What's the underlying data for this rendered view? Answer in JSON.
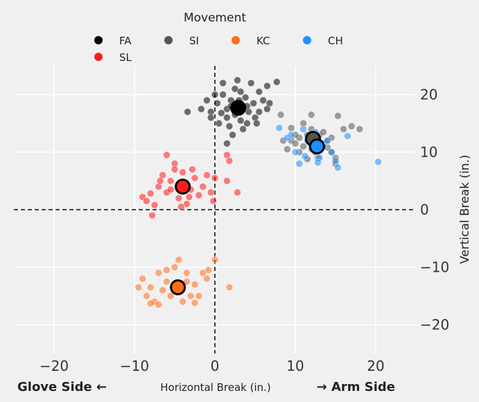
{
  "chart_data": {
    "type": "scatter",
    "title": "",
    "xlabel": "Horizontal Break (in.)",
    "ylabel": "Vertical Break (in.)",
    "x_left_annotation": "Glove Side ←",
    "x_right_annotation": "→ Arm Side",
    "xlim": [
      -25,
      25
    ],
    "ylim": [
      -25,
      25
    ],
    "xticks": [
      -20,
      -10,
      0,
      10,
      20
    ],
    "yticks": [
      -20,
      -10,
      0,
      10,
      20
    ],
    "xtick_labels": [
      "−20",
      "−10",
      "0",
      "10",
      "20"
    ],
    "ytick_labels": [
      "−20",
      "−10",
      "0",
      "10",
      "20"
    ],
    "grid": true,
    "reference_lines": {
      "x": 0,
      "y": 0
    },
    "legend": {
      "title": "Movement",
      "placement": "top-center"
    },
    "series": [
      {
        "name": "FA",
        "color": "#000000",
        "mean": [
          2.9,
          17.7
        ],
        "points": [
          [
            -0.5,
            17
          ],
          [
            0.3,
            18.5
          ],
          [
            1,
            20
          ],
          [
            1.5,
            16
          ],
          [
            2,
            19
          ],
          [
            2.5,
            21
          ],
          [
            3.2,
            15.5
          ],
          [
            3.8,
            19.5
          ],
          [
            4.2,
            17
          ],
          [
            4.8,
            18.5
          ],
          [
            5.5,
            20.5
          ],
          [
            5,
            16
          ],
          [
            6,
            19
          ],
          [
            6.5,
            17.5
          ],
          [
            1,
            22
          ],
          [
            2.8,
            22.5
          ],
          [
            4.5,
            22
          ],
          [
            0.5,
            15
          ],
          [
            1.8,
            14.5
          ],
          [
            3.5,
            14
          ],
          [
            2.2,
            13
          ],
          [
            -1.7,
            17.5
          ],
          [
            -3.4,
            17
          ],
          [
            -1,
            19
          ],
          [
            0,
            20
          ],
          [
            1.5,
            17.5
          ],
          [
            2.5,
            16.5
          ],
          [
            3,
            19
          ],
          [
            4,
            18
          ],
          [
            5.5,
            17
          ],
          [
            6.5,
            21.5
          ],
          [
            7.7,
            22.2
          ],
          [
            1.5,
            11.5
          ],
          [
            -0.5,
            16
          ],
          [
            4,
            15
          ],
          [
            3.2,
            20.5
          ],
          [
            0.8,
            16.8
          ],
          [
            5.2,
            15
          ],
          [
            2,
            18
          ],
          [
            6.8,
            18.5
          ]
        ]
      },
      {
        "name": "SI",
        "color": "#555555",
        "mean": [
          12.2,
          12.3
        ],
        "points": [
          [
            8.5,
            12
          ],
          [
            9,
            10.5
          ],
          [
            9.5,
            12
          ],
          [
            10,
            11.5
          ],
          [
            10.5,
            12.5
          ],
          [
            11,
            11
          ],
          [
            11.5,
            13
          ],
          [
            12,
            14
          ],
          [
            12.5,
            10
          ],
          [
            13,
            13
          ],
          [
            13.5,
            11.5
          ],
          [
            14,
            12
          ],
          [
            14.5,
            10
          ],
          [
            15,
            9
          ],
          [
            11,
            15
          ],
          [
            12,
            16.5
          ],
          [
            13.5,
            13.5
          ],
          [
            15.3,
            16.3
          ],
          [
            16,
            14
          ],
          [
            17,
            14.5
          ],
          [
            18,
            14
          ],
          [
            15,
            8
          ],
          [
            14.5,
            12.5
          ],
          [
            10,
            13
          ],
          [
            12.8,
            9
          ],
          [
            11.5,
            8.8
          ],
          [
            10.5,
            10
          ],
          [
            13,
            11
          ],
          [
            14,
            10.8
          ],
          [
            9.5,
            14.2
          ],
          [
            8.2,
            16.5
          ]
        ]
      },
      {
        "name": "KC",
        "color": "#ff6e1a",
        "mean": [
          -4.6,
          -13.5
        ],
        "points": [
          [
            -9.5,
            -13.5
          ],
          [
            -9,
            -12
          ],
          [
            -8.5,
            -15
          ],
          [
            -8,
            -13.5
          ],
          [
            -7.5,
            -16
          ],
          [
            -7,
            -11
          ],
          [
            -6.5,
            -14
          ],
          [
            -6,
            -12.5
          ],
          [
            -5.5,
            -15
          ],
          [
            -5,
            -10
          ],
          [
            -4.5,
            -13
          ],
          [
            -4,
            -16
          ],
          [
            -3.5,
            -11
          ],
          [
            -3,
            -15
          ],
          [
            -2.5,
            -13
          ],
          [
            -2,
            -15
          ],
          [
            -1.5,
            -11
          ],
          [
            -1,
            -12
          ],
          [
            -0.8,
            -10.5
          ],
          [
            -7,
            -16.5
          ],
          [
            -6,
            -10.5
          ],
          [
            -3.5,
            -12.5
          ],
          [
            -2.5,
            -16.2
          ],
          [
            0,
            -8.7
          ],
          [
            1.8,
            -13.5
          ],
          [
            -4.5,
            -8.7
          ],
          [
            -8,
            -16.3
          ],
          [
            -5,
            -14
          ]
        ]
      },
      {
        "name": "CH",
        "color": "#1e90ff",
        "mean": [
          12.7,
          11.0
        ],
        "points": [
          [
            8,
            14.2
          ],
          [
            9,
            12.5
          ],
          [
            10,
            10
          ],
          [
            10.5,
            8
          ],
          [
            11,
            14
          ],
          [
            11.5,
            12
          ],
          [
            12,
            10.5
          ],
          [
            12.5,
            13.5
          ],
          [
            13,
            9
          ],
          [
            13.5,
            11
          ],
          [
            14,
            12
          ],
          [
            14.5,
            10
          ],
          [
            15,
            8.5
          ],
          [
            15.3,
            7.3
          ],
          [
            16.5,
            12.8
          ],
          [
            20.3,
            8.3
          ],
          [
            9.5,
            13
          ],
          [
            11.2,
            9.3
          ],
          [
            12.8,
            8.2
          ]
        ]
      },
      {
        "name": "SL",
        "color": "#ff1a1a",
        "mean": [
          -4.0,
          4.0
        ],
        "points": [
          [
            -9,
            2.2
          ],
          [
            -8.5,
            1.5
          ],
          [
            -8,
            2.8
          ],
          [
            -7.5,
            0.8
          ],
          [
            -7,
            4
          ],
          [
            -6.5,
            6
          ],
          [
            -6,
            3
          ],
          [
            -5.5,
            5
          ],
          [
            -5,
            8
          ],
          [
            -4.5,
            2
          ],
          [
            -4,
            6.5
          ],
          [
            -3.5,
            1
          ],
          [
            -3,
            3.5
          ],
          [
            -2.5,
            5.5
          ],
          [
            -2,
            2.5
          ],
          [
            -1.5,
            4
          ],
          [
            -1,
            6
          ],
          [
            -0.5,
            3
          ],
          [
            0,
            5.5
          ],
          [
            -6,
            9.5
          ],
          [
            -5,
            7
          ],
          [
            -4.2,
            0.5
          ],
          [
            -2.8,
            7
          ],
          [
            -7.8,
            -1
          ],
          [
            -0.2,
            1.5
          ],
          [
            1.5,
            9.5
          ],
          [
            1.8,
            8.5
          ],
          [
            1.5,
            5
          ],
          [
            2.8,
            3
          ],
          [
            -3.2,
            2.2
          ],
          [
            -5.5,
            3.5
          ],
          [
            -6.8,
            5
          ]
        ]
      }
    ],
    "legend_order": [
      "FA",
      "SI",
      "KC",
      "CH",
      "SL"
    ]
  }
}
